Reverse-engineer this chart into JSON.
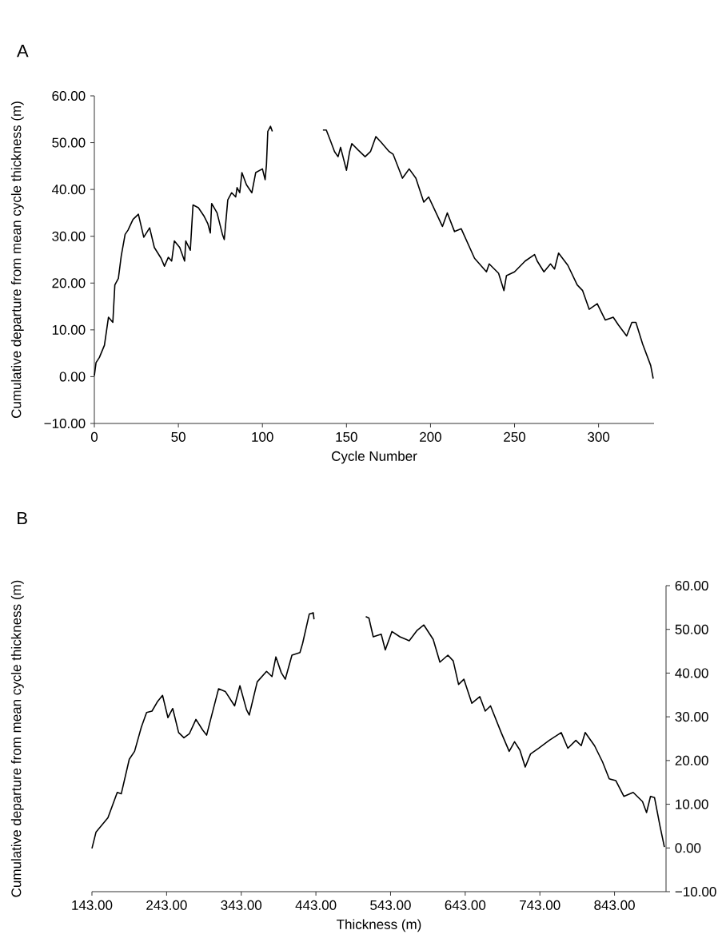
{
  "chart_data": [
    {
      "type": "line",
      "title": "A",
      "xlabel": "Cycle Number",
      "ylabel": "Cumulative departure from mean cycle thickness (m)",
      "xlim": [
        0,
        333
      ],
      "xticks": [
        0,
        50,
        100,
        150,
        200,
        250,
        300
      ],
      "ylim": [
        -10,
        60
      ],
      "yticks": [
        {
          "value": -10,
          "label": "−10.00"
        },
        {
          "value": 0,
          "label": "0.00"
        },
        {
          "value": 10,
          "label": "10.00"
        },
        {
          "value": 20,
          "label": "20.00"
        },
        {
          "value": 30,
          "label": "30.00"
        },
        {
          "value": 40,
          "label": "40.00"
        },
        {
          "value": 50,
          "label": "50.00"
        },
        {
          "value": 60,
          "label": "60.00"
        }
      ],
      "marker": "none",
      "line_style": "solid",
      "series": [
        {
          "color": "#000000",
          "x": [
            0,
            1,
            3,
            6,
            8.4,
            11,
            12.2,
            14.3,
            16,
            18.3,
            20,
            23,
            26.2,
            29.4,
            32.9,
            35.7,
            39.7,
            41.7,
            44,
            46,
            47.6,
            50.8,
            53.7,
            54.4,
            57.1,
            58.7,
            61.9,
            65.1,
            67.5,
            69,
            69.8,
            73,
            76.2,
            77.3,
            79.4,
            81.7,
            84.1,
            84.9,
            86.5,
            87.8,
            90.5,
            93.7,
            96,
            100,
            101.6,
            102.4,
            103.2,
            104.8,
            105.9,
            120,
            136,
            138,
            140.5,
            142.9,
            145,
            146.5,
            150,
            151.9,
            153.2,
            157,
            161.1,
            164.3,
            167.5,
            170.6,
            175.4,
            177.8,
            183.3,
            187.3,
            191.3,
            196,
            198.9,
            207.1,
            210,
            214.3,
            218.3,
            226.2,
            233.3,
            234.9,
            240.5,
            243.7,
            245.2,
            250,
            256.3,
            261.9,
            263.5,
            267.5,
            271.4,
            273.8,
            276.2,
            281.7,
            287.3,
            290.5,
            294.4,
            299.2,
            304,
            308.7,
            311.9,
            316.7,
            319.8,
            322.2,
            326.2,
            331,
            332.5
          ],
          "values": [
            0.2,
            3.0,
            4.1,
            6.7,
            12.7,
            11.6,
            19.6,
            21,
            25.8,
            30.4,
            31.3,
            33.6,
            34.7,
            29.8,
            31.8,
            27.6,
            25.3,
            23.6,
            25.5,
            24.7,
            29,
            27.6,
            24.7,
            29,
            27,
            36.7,
            36.1,
            34.4,
            32.7,
            30.7,
            37,
            35,
            30.4,
            29.3,
            37.8,
            39.3,
            38.4,
            40.4,
            39.3,
            43.6,
            41,
            39.3,
            43.6,
            44.4,
            42.1,
            45.3,
            52.4,
            53.5,
            52.4,
            null,
            52.7,
            52.7,
            50.4,
            48.1,
            47,
            49,
            44.1,
            48.1,
            49.8,
            48.4,
            47,
            48.1,
            51.3,
            50.1,
            48.1,
            47.5,
            42.4,
            44.4,
            42.4,
            37.3,
            38.4,
            32.1,
            35,
            31,
            31.6,
            25.3,
            22.4,
            24.1,
            22.1,
            18.4,
            21.6,
            22.4,
            24.7,
            26.1,
            24.7,
            22.4,
            24.1,
            23,
            26.4,
            23.8,
            19.6,
            18.4,
            14.4,
            15.6,
            12.1,
            12.7,
            11,
            8.7,
            11.6,
            11.6,
            7,
            2.4,
            -0.4
          ]
        }
      ]
    },
    {
      "type": "line",
      "title": "B",
      "xlabel": "Thickness (m)",
      "ylabel": "Cumulative departure from mean cycle thickness (m)",
      "xlim": [
        143,
        912
      ],
      "xticks": [
        {
          "value": 143,
          "label": "143.00"
        },
        {
          "value": 243,
          "label": "243.00"
        },
        {
          "value": 343,
          "label": "343.00"
        },
        {
          "value": 443,
          "label": "443.00"
        },
        {
          "value": 543,
          "label": "543.00"
        },
        {
          "value": 643,
          "label": "643.00"
        },
        {
          "value": 743,
          "label": "743.00"
        },
        {
          "value": 843,
          "label": "843.00"
        }
      ],
      "y2lim": [
        -10,
        60
      ],
      "y2ticks": [
        {
          "value": -10,
          "label": "−10.00"
        },
        {
          "value": 0,
          "label": "0.00"
        },
        {
          "value": 10,
          "label": "10.00"
        },
        {
          "value": 20,
          "label": "20.00"
        },
        {
          "value": 30,
          "label": "30.00"
        },
        {
          "value": 40,
          "label": "40.00"
        },
        {
          "value": 50,
          "label": "50.00"
        },
        {
          "value": 60,
          "label": "60.00"
        }
      ],
      "marker": "none",
      "line_style": "solid",
      "series": [
        {
          "color": "#000000",
          "axis": "y2",
          "x": [
            143,
            148.4,
            164.4,
            176.9,
            182.3,
            193,
            200.1,
            209.1,
            216.2,
            223.4,
            230.5,
            237.6,
            244.8,
            251.2,
            259.1,
            266.2,
            273.4,
            282.3,
            291.2,
            296.6,
            302,
            312.6,
            321.6,
            334.1,
            341.2,
            350.1,
            353.7,
            364.4,
            376.9,
            384.1,
            389.4,
            396.6,
            402,
            410.9,
            421.6,
            425.2,
            434.1,
            439.4,
            440.5,
            475,
            509.8,
            514,
            519.8,
            530.5,
            535.9,
            544.8,
            555.5,
            568,
            578.7,
            587.6,
            600.1,
            609.1,
            619.8,
            626.9,
            634.1,
            641.2,
            651.9,
            662.6,
            669.8,
            676.9,
            691.2,
            701.9,
            709.1,
            716.2,
            723.4,
            730.5,
            741.2,
            755.5,
            771.6,
            780.5,
            791.2,
            798.4,
            803.7,
            816.2,
            826.9,
            835.9,
            844.8,
            855.5,
            868,
            880.5,
            885.9,
            891.2,
            896.6,
            903.8,
            909.8
          ],
          "values": [
            -0.1,
            3.6,
            6.9,
            12.7,
            12.4,
            20.3,
            22.1,
            27.6,
            31,
            31.3,
            33.4,
            34.9,
            29.8,
            31.9,
            26.4,
            25.2,
            26.1,
            29.4,
            27,
            25.8,
            29.4,
            36.4,
            35.8,
            32.5,
            37.1,
            31.6,
            30.4,
            38,
            40.4,
            39.2,
            43.7,
            40.1,
            38.6,
            44.1,
            44.7,
            46.8,
            53.5,
            53.8,
            52.3,
            null,
            52.9,
            52.6,
            48.3,
            48.9,
            45.3,
            49.5,
            48.3,
            47.4,
            49.8,
            51,
            47.7,
            42.5,
            44.1,
            42.8,
            37.4,
            38.6,
            33.1,
            34.6,
            31.3,
            32.5,
            26.4,
            22.1,
            24.3,
            22.4,
            18.5,
            21.5,
            22.8,
            24.6,
            26.4,
            22.8,
            24.6,
            23.4,
            26.4,
            23.4,
            19.7,
            15.8,
            15.4,
            11.8,
            12.7,
            10.6,
            8.1,
            11.8,
            11.5,
            5.1,
            0.2
          ]
        }
      ]
    }
  ]
}
